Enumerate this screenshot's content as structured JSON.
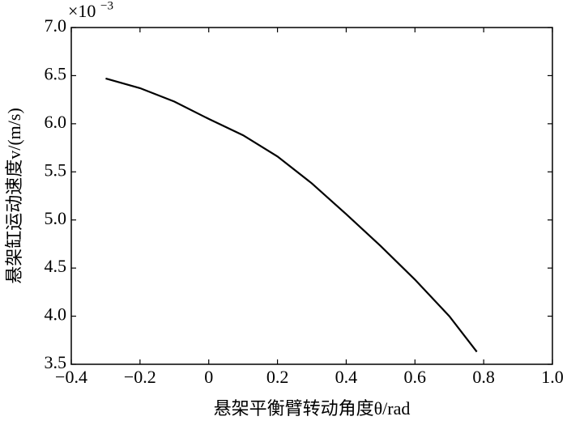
{
  "chart_data": {
    "type": "line",
    "x_label": "悬架平衡臂转动角度θ/rad",
    "y_label": "悬架缸运动速度v/(m/s)",
    "y_multiplier": "×10",
    "y_multiplier_exponent": "−3",
    "x": [
      -0.3,
      -0.2,
      -0.1,
      0,
      0.1,
      0.2,
      0.3,
      0.4,
      0.5,
      0.6,
      0.7,
      0.78
    ],
    "series": [
      {
        "color": "#000000",
        "values": [
          6.47,
          6.37,
          6.23,
          6.05,
          5.88,
          5.66,
          5.38,
          5.06,
          4.73,
          4.38,
          4.0,
          3.63
        ]
      }
    ],
    "xlim": [
      -0.4,
      1.0
    ],
    "xticks": [
      {
        "value": -0.4,
        "label": "−0.4"
      },
      {
        "value": -0.2,
        "label": "−0.2"
      },
      0,
      0.2,
      0.4,
      0.6,
      0.8,
      {
        "value": 1.0,
        "label": "1.0"
      }
    ],
    "ylim": [
      3.5,
      7.0
    ],
    "yticks": [
      3.5,
      {
        "value": 4.0,
        "label": "4.0"
      },
      4.5,
      {
        "value": 5.0,
        "label": "5.0"
      },
      5.5,
      {
        "value": 6.0,
        "label": "6.0"
      },
      6.5,
      {
        "value": 7.0,
        "label": "7.0"
      }
    ],
    "grid": false
  }
}
